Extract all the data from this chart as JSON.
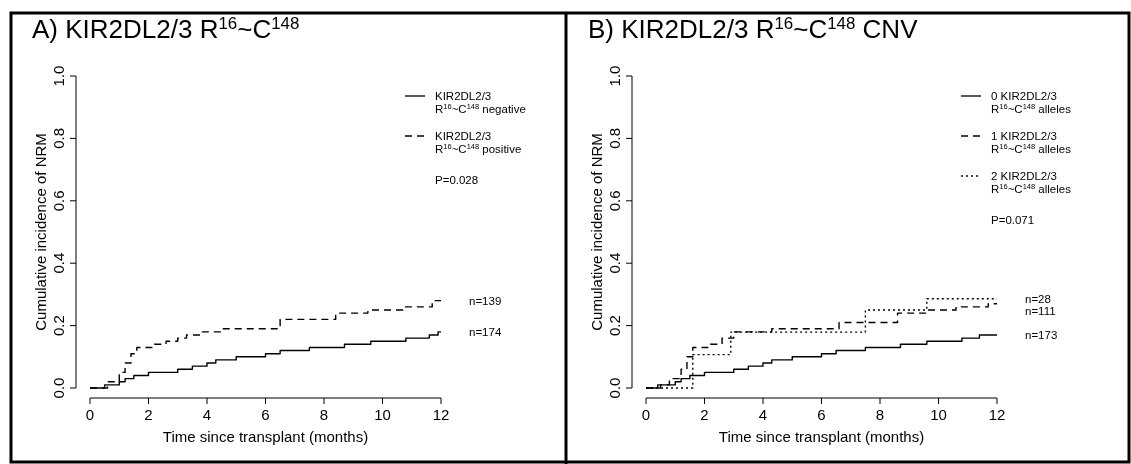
{
  "chart_data": [
    {
      "type": "step",
      "title": "A) KIR2DL2/3 R$^{16}$~C$^{148}$",
      "xlabel": "Time since transplant (months)",
      "ylabel": "Cumulative incidence of NRM",
      "xlim": [
        0,
        12
      ],
      "xticks": [
        0,
        2,
        4,
        6,
        8,
        10,
        12
      ],
      "ylim": [
        0,
        1
      ],
      "yticks": [
        {
          "value": 0,
          "label": "0.0"
        },
        {
          "value": 0.2,
          "label": "0.2"
        },
        {
          "value": 0.4,
          "label": "0.4"
        },
        {
          "value": 0.6,
          "label": "0.6"
        },
        {
          "value": 0.8,
          "label": "0.8"
        },
        {
          "value": 1,
          "label": "1.0"
        }
      ],
      "legend": "top right",
      "grid": false,
      "series": [
        {
          "name": "KIR2DL2/3\nR$^{16}$~C$^{148}$ negative",
          "color": "#000000",
          "line_style": "solid",
          "x": [
            0,
            0.5,
            1,
            1.2,
            1.5,
            2,
            3,
            3.5,
            4,
            4.3,
            5,
            6,
            6.5,
            7.5,
            8.7,
            9.6,
            10.8,
            11.6,
            11.9,
            12
          ],
          "values": [
            0,
            0.01,
            0.02,
            0.03,
            0.04,
            0.05,
            0.06,
            0.07,
            0.08,
            0.09,
            0.1,
            0.11,
            0.12,
            0.13,
            0.14,
            0.15,
            0.16,
            0.17,
            0.18,
            0.18
          ]
        },
        {
          "name": "KIR2DL2/3\nR$^{16}$~C$^{148}$ positive",
          "color": "#000000",
          "line_style": "dashed",
          "x": [
            0,
            0.6,
            1,
            1.2,
            1.4,
            1.6,
            2.2,
            2.6,
            3,
            3.3,
            3.8,
            4.5,
            6.5,
            8.4,
            9.5,
            10.7,
            11.7,
            12
          ],
          "values": [
            0,
            0.02,
            0.05,
            0.08,
            0.11,
            0.13,
            0.14,
            0.15,
            0.16,
            0.17,
            0.18,
            0.19,
            0.22,
            0.24,
            0.25,
            0.26,
            0.28,
            0.28
          ]
        }
      ],
      "annotations": [
        "P=0.028",
        "n=139",
        "n=174"
      ]
    },
    {
      "type": "step",
      "title": "B) KIR2DL2/3 R$^{16}$~C$^{148}$ CNV",
      "xlabel": "Time since transplant (months)",
      "ylabel": "Cumulative incidence of NRM",
      "xlim": [
        0,
        12
      ],
      "xticks": [
        0,
        2,
        4,
        6,
        8,
        10,
        12
      ],
      "ylim": [
        0,
        1
      ],
      "yticks": [
        {
          "value": 0,
          "label": "0.0"
        },
        {
          "value": 0.2,
          "label": "0.2"
        },
        {
          "value": 0.4,
          "label": "0.4"
        },
        {
          "value": 0.6,
          "label": "0.6"
        },
        {
          "value": 0.8,
          "label": "0.8"
        },
        {
          "value": 1,
          "label": "1.0"
        }
      ],
      "legend": "top right",
      "grid": false,
      "series": [
        {
          "name": "0 KIR2DL2/3\nR$^{16}$~C$^{148}$ alleles",
          "color": "#000000",
          "line_style": "solid",
          "x": [
            0,
            0.5,
            1,
            1.2,
            1.5,
            2,
            3,
            3.5,
            4,
            4.3,
            5,
            6,
            6.5,
            7.5,
            8.7,
            9.6,
            10.8,
            11.4,
            11.8,
            12
          ],
          "values": [
            0,
            0.01,
            0.02,
            0.03,
            0.04,
            0.05,
            0.06,
            0.07,
            0.08,
            0.09,
            0.1,
            0.11,
            0.12,
            0.13,
            0.14,
            0.15,
            0.16,
            0.17,
            0.17,
            0.17
          ]
        },
        {
          "name": "1 KIR2DL2/3\nR$^{16}$~C$^{148}$ alleles",
          "color": "#000000",
          "line_style": "dashed",
          "x": [
            0,
            0.4,
            0.8,
            1.2,
            1.4,
            1.6,
            2.2,
            2.6,
            3,
            3.4,
            4.3,
            6.6,
            8.6,
            9.6,
            10.6,
            11.7,
            12
          ],
          "values": [
            0,
            0.01,
            0.03,
            0.06,
            0.1,
            0.13,
            0.14,
            0.16,
            0.18,
            0.18,
            0.19,
            0.21,
            0.24,
            0.25,
            0.26,
            0.27,
            0.27
          ]
        },
        {
          "name": "2 KIR2DL2/3\nR$^{16}$~C$^{148}$ alleles",
          "color": "#000000",
          "line_style": "dotted",
          "x": [
            0,
            1.6,
            2.9,
            7.5,
            9.6,
            12
          ],
          "values": [
            0,
            0.107,
            0.179,
            0.25,
            0.286,
            0.286
          ]
        }
      ],
      "annotations": [
        "P=0.071",
        "n=28",
        "n=111",
        "n=173"
      ]
    }
  ]
}
